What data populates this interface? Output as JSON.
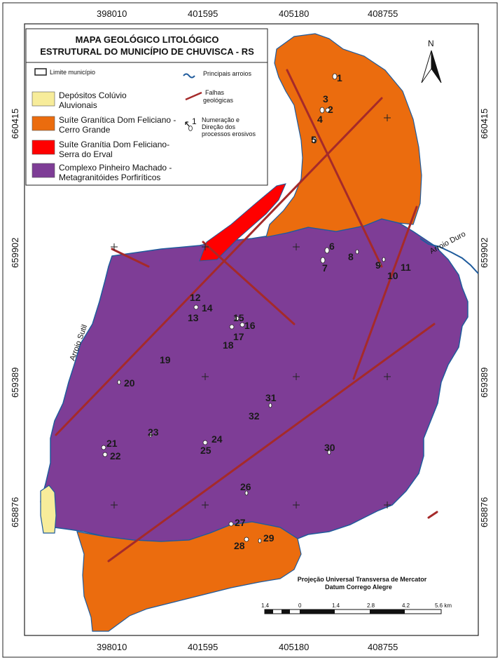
{
  "title_line1": "MAPA GEOLÓGICO LITOLÓGICO",
  "title_line2": "ESTRUTURAL DO MUNICÍPIO DE CHUVISCA - RS",
  "legend": {
    "limite": "Limite município",
    "arroios": "Principais arroios",
    "falhas_1": "Falhas",
    "falhas_2": "geológicas",
    "num_symbol": "1",
    "num_1": "Numeração e",
    "num_2": "Direção dos",
    "num_3": "processos erosivos",
    "units": [
      {
        "line1": "Depósitos Colúvio",
        "line2": "Aluvionais",
        "color": "#f7ec9a"
      },
      {
        "line1": "Suíte Granítica Dom Feliciano -",
        "line2": "Cerro Grande",
        "color": "#eb6c0e"
      },
      {
        "line1": "Suíte Granítia Dom Feliciano-",
        "line2": "Serra do Erval",
        "color": "#ff0000"
      },
      {
        "line1": "Complexo Pinheiro Machado -",
        "line2": "Metagranitóides Porfiríticos",
        "color": "#7e3d96"
      }
    ]
  },
  "x_ticks": [
    "398010",
    "401595",
    "405180",
    "408755"
  ],
  "y_ticks": [
    "660415",
    "659902",
    "659389",
    "658876"
  ],
  "north": "N",
  "rivers": {
    "left": "Arroio Sutil",
    "right": "Arroio Duro"
  },
  "sites": [
    "1",
    "2",
    "3",
    "4",
    "5",
    "6",
    "7",
    "8",
    "9",
    "10",
    "11",
    "12",
    "13",
    "14",
    "15",
    "16",
    "17",
    "18",
    "19",
    "20",
    "21",
    "22",
    "23",
    "24",
    "25",
    "26",
    "27",
    "28",
    "29",
    "30",
    "31",
    "32"
  ],
  "footer_1": "Projeção Universal Transversa de Mercator",
  "footer_2": "Datum Corrego Alegre",
  "scale_labels": [
    "1.4",
    "0",
    "1.4",
    "2.8",
    "4.2",
    "5.6 km"
  ],
  "colors": {
    "fault": "#a52a2a",
    "river": "#1f5b9c",
    "purple": "#7e3d96",
    "orange": "#eb6c0e",
    "red": "#ff0000",
    "yellow": "#f7ec9a"
  }
}
